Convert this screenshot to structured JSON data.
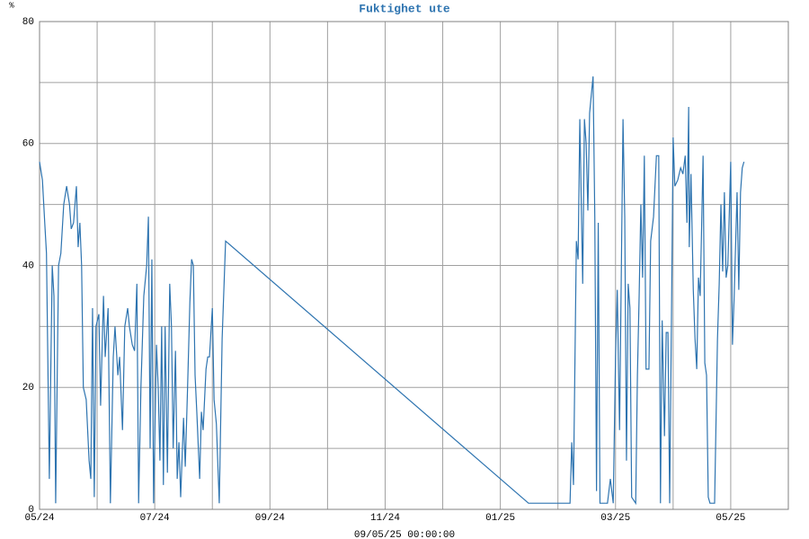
{
  "chart_data": {
    "type": "line",
    "title": "Fuktighet ute",
    "xlabel": "09/05/25 00:00:00",
    "ylabel": "%",
    "color": "#2e74b0",
    "grid": true,
    "xlim": [
      0,
      13
    ],
    "xticks": [
      {
        "value": 0,
        "label": "05/24"
      },
      {
        "value": 2,
        "label": "07/24"
      },
      {
        "value": 4,
        "label": "09/24"
      },
      {
        "value": 6,
        "label": "11/24"
      },
      {
        "value": 8,
        "label": "01/25"
      },
      {
        "value": 10,
        "label": "03/25"
      },
      {
        "value": 12,
        "label": "05/25"
      }
    ],
    "xminor": [
      1,
      3,
      5,
      7,
      9,
      11,
      13
    ],
    "ylim": [
      0,
      80
    ],
    "yticks": [
      0,
      20,
      40,
      60,
      80
    ],
    "yminor": [
      10,
      30,
      50,
      70
    ],
    "x": [
      0,
      0.05,
      0.09,
      0.12,
      0.17,
      0.22,
      0.25,
      0.28,
      0.33,
      0.37,
      0.42,
      0.47,
      0.52,
      0.55,
      0.59,
      0.64,
      0.67,
      0.7,
      0.73,
      0.76,
      0.81,
      0.86,
      0.89,
      0.92,
      0.95,
      0.98,
      1.03,
      1.06,
      1.11,
      1.14,
      1.19,
      1.23,
      1.28,
      1.31,
      1.36,
      1.39,
      1.44,
      1.48,
      1.53,
      1.56,
      1.61,
      1.65,
      1.69,
      1.72,
      1.76,
      1.81,
      1.86,
      1.89,
      1.92,
      1.95,
      1.98,
      2.03,
      2.06,
      2.09,
      2.12,
      2.15,
      2.18,
      2.22,
      2.26,
      2.29,
      2.32,
      2.36,
      2.39,
      2.42,
      2.45,
      2.5,
      2.53,
      2.57,
      2.61,
      2.64,
      2.67,
      2.7,
      2.73,
      2.78,
      2.81,
      2.84,
      2.89,
      2.92,
      2.95,
      3.0,
      3.03,
      3.07,
      3.12,
      3.17,
      3.23,
      8.49,
      8.8,
      9.21,
      9.24,
      9.27,
      9.32,
      9.35,
      9.38,
      9.43,
      9.46,
      9.49,
      9.52,
      9.55,
      9.61,
      9.64,
      9.67,
      9.7,
      9.73,
      9.79,
      9.86,
      9.91,
      9.96,
      10.0,
      10.03,
      10.07,
      10.13,
      10.16,
      10.19,
      10.22,
      10.25,
      10.28,
      10.35,
      10.38,
      10.41,
      10.44,
      10.47,
      10.5,
      10.53,
      10.58,
      10.61,
      10.66,
      10.71,
      10.75,
      10.78,
      10.81,
      10.85,
      10.88,
      10.91,
      10.94,
      10.97,
      11.0,
      11.03,
      11.08,
      11.13,
      11.17,
      11.21,
      11.24,
      11.27,
      11.28,
      11.31,
      11.35,
      11.38,
      11.41,
      11.44,
      11.47,
      11.52,
      11.55,
      11.58,
      11.61,
      11.64,
      11.72,
      11.77,
      11.8,
      11.83,
      11.86,
      11.89,
      11.92,
      11.95,
      12.0,
      12.03,
      12.06,
      12.11,
      12.14,
      12.17,
      12.2,
      12.23
    ],
    "values": [
      57,
      54,
      47,
      42,
      5,
      40,
      35,
      1,
      40,
      42,
      50,
      53,
      50,
      46,
      47,
      53,
      43,
      47,
      40,
      20,
      18,
      8,
      5,
      33,
      2,
      30,
      32,
      17,
      35,
      25,
      33,
      1,
      25,
      30,
      22,
      25,
      13,
      30,
      33,
      30,
      27,
      26,
      37,
      1,
      20,
      35,
      40,
      48,
      10,
      41,
      1,
      27,
      20,
      8,
      30,
      4,
      30,
      6,
      37,
      30,
      10,
      26,
      5,
      11,
      2,
      15,
      7,
      20,
      34,
      41,
      40,
      22,
      16,
      5,
      16,
      13,
      23,
      25,
      25,
      33,
      18,
      14,
      1,
      28,
      44,
      1,
      1,
      1,
      11,
      4,
      44,
      41,
      64,
      37,
      64,
      60,
      49,
      65,
      71,
      48,
      3,
      47,
      1,
      1,
      1,
      5,
      1,
      25,
      36,
      13,
      64,
      48,
      8,
      37,
      33,
      2,
      1,
      22,
      35,
      50,
      38,
      58,
      23,
      23,
      44,
      48,
      58,
      58,
      1,
      31,
      12,
      29,
      29,
      1,
      30,
      61,
      53,
      54,
      56,
      55,
      58,
      47,
      66,
      43,
      55,
      36,
      28,
      23,
      38,
      35,
      58,
      24,
      22,
      2,
      1,
      1,
      28,
      37,
      50,
      39,
      52,
      38,
      40,
      57,
      27,
      35,
      52,
      36,
      52,
      56,
      57
    ]
  }
}
